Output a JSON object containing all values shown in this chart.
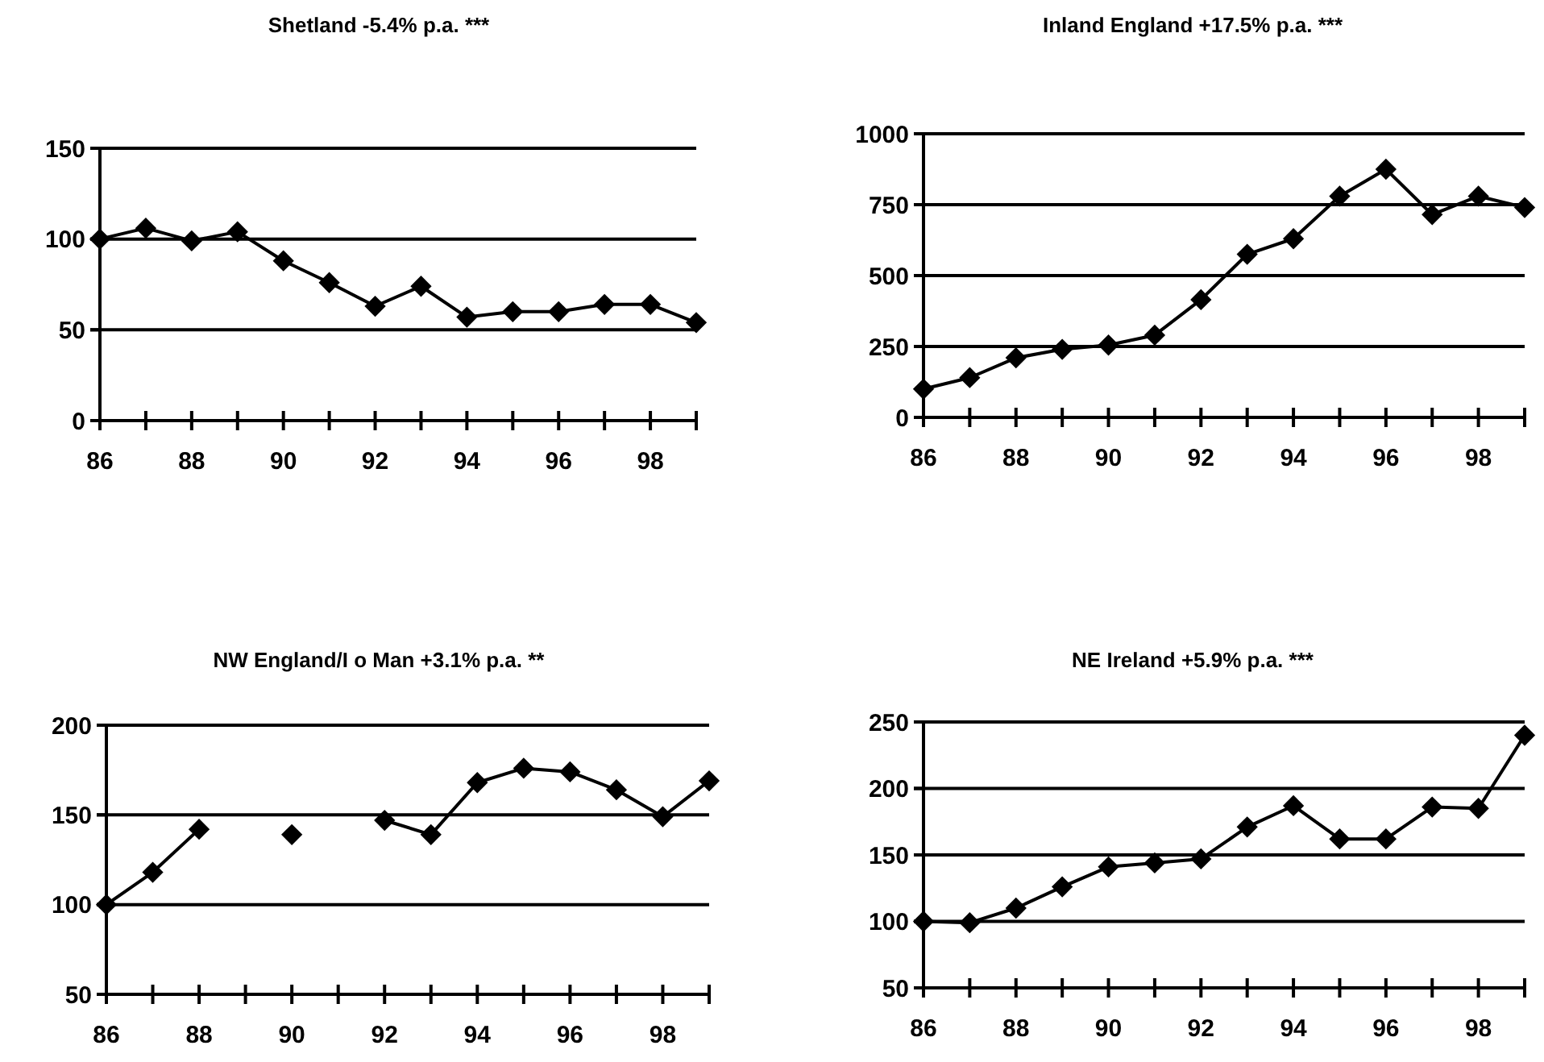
{
  "chart_data": [
    {
      "type": "line",
      "title": "Shetland -5.4% p.a. ***",
      "x": [
        86,
        87,
        88,
        89,
        90,
        91,
        92,
        93,
        94,
        95,
        96,
        97,
        98,
        99
      ],
      "xlim": [
        86,
        99
      ],
      "xticks": [
        86,
        {
          "value": 87,
          "label": null
        },
        88,
        {
          "value": 89,
          "label": null
        },
        90,
        {
          "value": 91,
          "label": null
        },
        92,
        {
          "value": 93,
          "label": null
        },
        94,
        {
          "value": 95,
          "label": null
        },
        96,
        {
          "value": 97,
          "label": null
        },
        98,
        {
          "value": 99,
          "label": null
        }
      ],
      "ylim": [
        0,
        150
      ],
      "yticks": [
        0,
        50,
        100,
        150
      ],
      "grid": "y",
      "marker": "diamond",
      "line_style": "solid",
      "series": [
        {
          "color": "#000000",
          "values": [
            100,
            106,
            99,
            104,
            88,
            76,
            63,
            74,
            57,
            60,
            60,
            64,
            64,
            54
          ]
        }
      ]
    },
    {
      "type": "line",
      "title": "Inland England +17.5% p.a. ***",
      "x": [
        86,
        87,
        88,
        89,
        90,
        91,
        92,
        93,
        94,
        95,
        96,
        97,
        98,
        99
      ],
      "xlim": [
        86,
        99
      ],
      "xticks": [
        86,
        {
          "value": 87,
          "label": null
        },
        88,
        {
          "value": 89,
          "label": null
        },
        90,
        {
          "value": 91,
          "label": null
        },
        92,
        {
          "value": 93,
          "label": null
        },
        94,
        {
          "value": 95,
          "label": null
        },
        96,
        {
          "value": 97,
          "label": null
        },
        98,
        {
          "value": 99,
          "label": null
        }
      ],
      "ylim": [
        0,
        1000
      ],
      "yticks": [
        0,
        250,
        500,
        750,
        1000
      ],
      "grid": "y",
      "marker": "diamond",
      "line_style": "solid",
      "series": [
        {
          "color": "#000000",
          "values": [
            100,
            140,
            210,
            240,
            255,
            290,
            415,
            575,
            630,
            780,
            875,
            715,
            780,
            740
          ]
        }
      ]
    },
    {
      "type": "line",
      "title": "NW England/I o Man +3.1% p.a. **",
      "x": [
        86,
        87,
        88,
        89,
        90,
        91,
        92,
        93,
        94,
        95,
        96,
        97,
        98,
        99
      ],
      "xlim": [
        86,
        99
      ],
      "xticks": [
        86,
        {
          "value": 87,
          "label": null
        },
        88,
        {
          "value": 89,
          "label": null
        },
        90,
        {
          "value": 91,
          "label": null
        },
        92,
        {
          "value": 93,
          "label": null
        },
        94,
        {
          "value": 95,
          "label": null
        },
        96,
        {
          "value": 97,
          "label": null
        },
        98,
        {
          "value": 99,
          "label": null
        }
      ],
      "ylim": [
        50,
        200
      ],
      "yticks": [
        50,
        100,
        150,
        200
      ],
      "grid": "y",
      "marker": "diamond",
      "line_style": "solid",
      "series": [
        {
          "color": "#000000",
          "values": [
            100,
            118,
            142,
            null,
            139,
            null,
            147,
            139,
            168,
            176,
            174,
            164,
            149,
            169
          ]
        }
      ]
    },
    {
      "type": "line",
      "title": "NE Ireland +5.9% p.a. ***",
      "x": [
        86,
        87,
        88,
        89,
        90,
        91,
        92,
        93,
        94,
        95,
        96,
        97,
        98,
        99
      ],
      "xlim": [
        86,
        99
      ],
      "xticks": [
        86,
        {
          "value": 87,
          "label": null
        },
        88,
        {
          "value": 89,
          "label": null
        },
        90,
        {
          "value": 91,
          "label": null
        },
        92,
        {
          "value": 93,
          "label": null
        },
        94,
        {
          "value": 95,
          "label": null
        },
        96,
        {
          "value": 97,
          "label": null
        },
        98,
        {
          "value": 99,
          "label": null
        }
      ],
      "ylim": [
        50,
        250
      ],
      "yticks": [
        50,
        100,
        150,
        200,
        250
      ],
      "grid": "y",
      "marker": "diamond",
      "line_style": "solid",
      "series": [
        {
          "color": "#000000",
          "values": [
            100,
            99,
            110,
            126,
            141,
            144,
            147,
            171,
            187,
            162,
            162,
            186,
            185,
            240
          ]
        }
      ]
    }
  ]
}
